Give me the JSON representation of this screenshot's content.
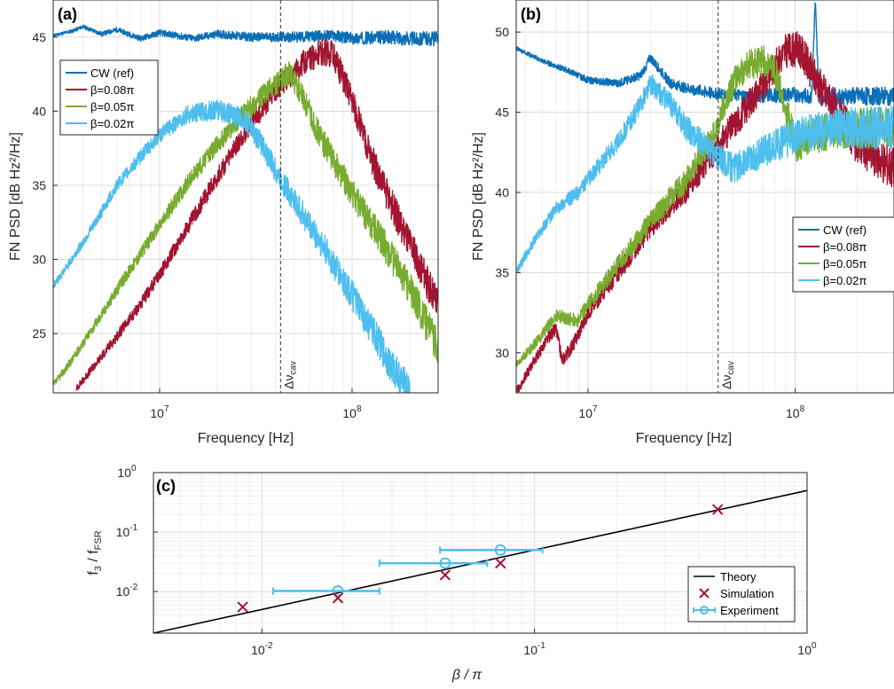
{
  "colors": {
    "cw": "#0b6fb7",
    "b008": "#a2142f",
    "b005": "#77ac30",
    "b002": "#4dbeee",
    "theory": "#000000",
    "simulation": "#a2142f",
    "experiment": "#4dbeee"
  },
  "chart_data": [
    {
      "type": "line",
      "panel_label": "(a)",
      "xlabel": "Frequency [Hz]",
      "ylabel": "FN PSD [dB Hz²/Hz]",
      "xscale": "log",
      "xlim": [
        2800000,
        280000000
      ],
      "ylim": [
        21,
        47.5
      ],
      "yticks": [
        25,
        30,
        35,
        40,
        45
      ],
      "ytick_labels": [
        "25",
        "30",
        "35",
        "40",
        "45"
      ],
      "xtick_labels": [
        {
          "base": "10",
          "exp": "7"
        },
        {
          "base": "10",
          "exp": "8"
        }
      ],
      "vline": {
        "x": 42500000,
        "label": "Δν",
        "label_sub": "cav"
      },
      "legend": {
        "position": "upper-left",
        "entries": [
          "CW (ref)",
          "β=0.08π",
          "β=0.05π",
          "β=0.02π"
        ]
      },
      "grid": true,
      "series": [
        {
          "name": "CW (ref)",
          "color_key": "cw",
          "noise": 0.25,
          "x": [
            2800000,
            3500000,
            4000000,
            5000000,
            6000000,
            8000000,
            10000000,
            15000000,
            20000000,
            30000000,
            50000000,
            80000000,
            100000000,
            150000000,
            200000000,
            280000000
          ],
          "y": [
            45.1,
            45.4,
            45.7,
            45.2,
            45.5,
            44.9,
            45.3,
            44.9,
            45.2,
            45.0,
            45.0,
            45.1,
            44.9,
            45.0,
            44.9,
            44.9
          ]
        },
        {
          "name": "β=0.08π",
          "color_key": "b008",
          "noise": 0.6,
          "x": [
            3700000,
            4500000,
            6000000,
            8000000,
            10000000,
            14000000,
            20000000,
            28000000,
            40000000,
            55000000,
            70000000,
            80000000,
            100000000,
            120000000,
            150000000,
            200000000,
            280000000
          ],
          "y": [
            21.3,
            22.7,
            24.8,
            27.0,
            29.0,
            32.2,
            35.6,
            38.6,
            41.4,
            43.2,
            44.0,
            43.8,
            40.8,
            37.5,
            34.5,
            31.0,
            26.8
          ]
        },
        {
          "name": "β=0.05π",
          "color_key": "b005",
          "noise": 0.6,
          "x": [
            2800000,
            3500000,
            5000000,
            7000000,
            10000000,
            14000000,
            20000000,
            28000000,
            40000000,
            47000000,
            55000000,
            70000000,
            100000000,
            150000000,
            200000000,
            280000000
          ],
          "y": [
            21.5,
            23.2,
            26.3,
            29.3,
            32.3,
            35.2,
            37.8,
            40.0,
            41.8,
            42.6,
            41.0,
            38.0,
            34.5,
            30.8,
            28.0,
            24.0
          ]
        },
        {
          "name": "β=0.02π",
          "color_key": "b002",
          "noise": 0.6,
          "x": [
            2800000,
            3500000,
            4500000,
            6000000,
            8000000,
            10000000,
            14000000,
            20000000,
            28000000,
            35000000,
            40000000,
            50000000,
            70000000,
            100000000,
            130000000,
            160000000,
            200000000
          ],
          "y": [
            28.2,
            30.0,
            32.2,
            35.0,
            37.0,
            38.4,
            39.8,
            40.1,
            39.4,
            37.5,
            36.0,
            34.0,
            31.0,
            27.6,
            25.0,
            22.8,
            21.0
          ]
        }
      ]
    },
    {
      "type": "line",
      "panel_label": "(b)",
      "xlabel": "Frequency [Hz]",
      "ylabel": "FN PSD [dB Hz²/Hz]",
      "xscale": "log",
      "xlim": [
        4500000,
        300000000
      ],
      "ylim": [
        27.5,
        52
      ],
      "yticks": [
        30,
        35,
        40,
        45,
        50
      ],
      "ytick_labels": [
        "30",
        "35",
        "40",
        "45",
        "50"
      ],
      "xtick_labels": [
        {
          "base": "10",
          "exp": "7"
        },
        {
          "base": "10",
          "exp": "8"
        }
      ],
      "vline": {
        "x": 42500000,
        "label": "Δν",
        "label_sub": "cav"
      },
      "legend": {
        "position": "right",
        "entries": [
          "CW (ref)",
          "β=0.08π",
          "β=0.05π",
          "β=0.02π"
        ]
      },
      "grid": true,
      "series": [
        {
          "name": "CW (ref)",
          "color_key": "cw",
          "noise": 0.3,
          "x": [
            4500000,
            6000000,
            8000000,
            10000000,
            14000000,
            18000000,
            20000000,
            25000000,
            30000000,
            40000000,
            60000000,
            100000000,
            120000000,
            125000000,
            130000000,
            200000000,
            300000000
          ],
          "y": [
            49.0,
            48.2,
            47.6,
            47.0,
            46.8,
            47.3,
            48.4,
            46.8,
            46.5,
            46.2,
            46.0,
            46.1,
            46.0,
            51.8,
            46.0,
            46.0,
            46.0
          ]
        },
        {
          "name": "β=0.08π",
          "color_key": "b008",
          "noise": 0.7,
          "x": [
            4500000,
            5500000,
            6500000,
            7000000,
            7500000,
            8500000,
            10000000,
            14000000,
            20000000,
            30000000,
            42000000,
            55000000,
            70000000,
            90000000,
            105000000,
            120000000,
            150000000,
            200000000,
            300000000
          ],
          "y": [
            27.5,
            29.5,
            31.0,
            31.5,
            29.5,
            30.5,
            32.5,
            35.0,
            37.8,
            40.2,
            42.8,
            44.8,
            46.8,
            48.8,
            49.0,
            47.5,
            45.5,
            43.0,
            41.5
          ]
        },
        {
          "name": "β=0.05π",
          "color_key": "b005",
          "noise": 0.7,
          "x": [
            4500000,
            5500000,
            7000000,
            9000000,
            10000000,
            14000000,
            20000000,
            30000000,
            40000000,
            50000000,
            60000000,
            70000000,
            80000000,
            95000000,
            100000000,
            120000000,
            160000000,
            220000000,
            300000000
          ],
          "y": [
            29.2,
            30.5,
            32.3,
            32.0,
            33.0,
            35.5,
            38.2,
            40.8,
            43.5,
            46.8,
            48.0,
            48.2,
            47.6,
            44.0,
            43.0,
            43.5,
            44.0,
            44.0,
            44.0
          ]
        },
        {
          "name": "β=0.02π",
          "color_key": "b002",
          "noise": 0.7,
          "x": [
            4500000,
            5500000,
            7000000,
            9000000,
            10000000,
            14000000,
            18000000,
            20000000,
            25000000,
            30000000,
            40000000,
            50000000,
            70000000,
            100000000,
            150000000,
            220000000,
            300000000
          ],
          "y": [
            35.0,
            37.0,
            39.0,
            40.0,
            40.8,
            43.2,
            45.5,
            46.8,
            45.5,
            44.0,
            42.5,
            41.5,
            42.5,
            43.5,
            44.0,
            44.0,
            44.0
          ]
        }
      ]
    },
    {
      "type": "scatter",
      "panel_label": "(c)",
      "xlabel": "β / π",
      "ylabel": "f₃ / f_FSR",
      "ylabel_main": "f",
      "ylabel_sub1": "3",
      "ylabel_mid": " / f",
      "ylabel_sub2": "FSR",
      "xscale": "log",
      "yscale": "log",
      "xlim": [
        0.004,
        1
      ],
      "ylim": [
        0.002,
        1
      ],
      "xtick_labels": [
        {
          "base": "10",
          "exp": "-2"
        },
        {
          "base": "10",
          "exp": "-1"
        },
        {
          "base": "10",
          "exp": "0"
        }
      ],
      "ytick_labels": [
        {
          "base": "10",
          "exp": "-2"
        },
        {
          "base": "10",
          "exp": "-1"
        },
        {
          "base": "10",
          "exp": "0"
        }
      ],
      "legend": {
        "position": "lower-right",
        "entries": [
          "Theory",
          "Simulation",
          "Experiment"
        ]
      },
      "grid": true,
      "theory": {
        "name": "Theory",
        "x": [
          0.004,
          1
        ],
        "y": [
          0.002,
          0.5
        ]
      },
      "simulation": {
        "name": "Simulation",
        "x": [
          0.0085,
          0.019,
          0.047,
          0.075,
          0.47
        ],
        "y": [
          0.0055,
          0.0078,
          0.019,
          0.03,
          0.24
        ]
      },
      "experiment": {
        "name": "Experiment",
        "x": [
          0.019,
          0.047,
          0.075
        ],
        "y": [
          0.0102,
          0.03,
          0.05
        ],
        "xerr_low": [
          0.011,
          0.027,
          0.045
        ],
        "xerr_high": [
          0.027,
          0.067,
          0.107
        ]
      }
    }
  ]
}
